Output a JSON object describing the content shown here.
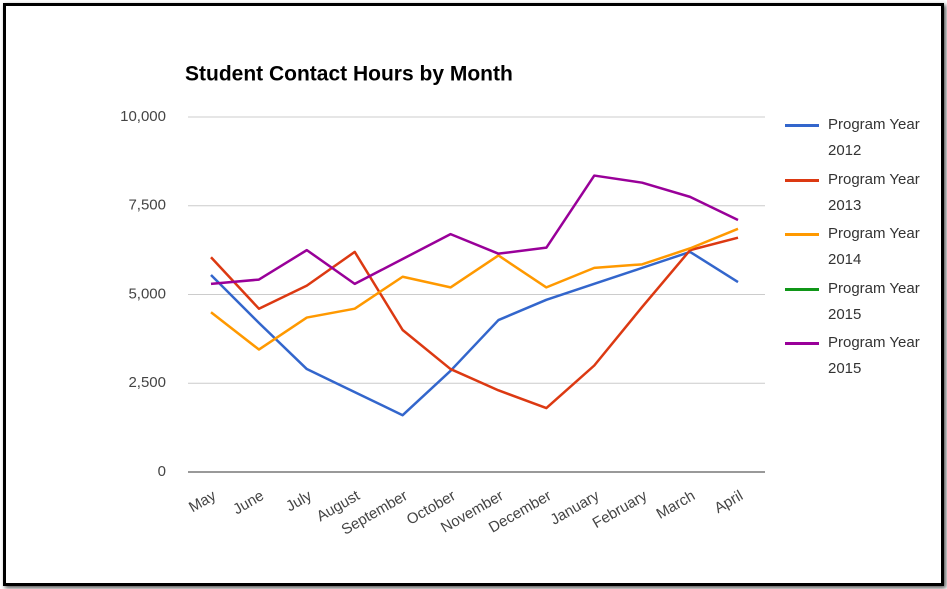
{
  "chart_data": {
    "type": "line",
    "title": "Student Contact Hours by Month",
    "categories": [
      "May",
      "June",
      "July",
      "August",
      "September",
      "October",
      "November",
      "December",
      "January",
      "February",
      "March",
      "April"
    ],
    "series": [
      {
        "name": "Program Year 2012",
        "color": "#3366cc",
        "values": [
          5550,
          4200,
          2900,
          2250,
          1600,
          2850,
          4280,
          4850,
          5300,
          5750,
          6200,
          5350
        ]
      },
      {
        "name": "Program Year 2013",
        "color": "#dc3912",
        "values": [
          6050,
          4600,
          5250,
          6200,
          4000,
          2900,
          2300,
          1800,
          3000,
          4650,
          6250,
          6600
        ]
      },
      {
        "name": "Program Year 2014",
        "color": "#ff9900",
        "values": [
          4500,
          3450,
          4350,
          4600,
          5500,
          5200,
          6100,
          5200,
          5750,
          5850,
          6300,
          6850
        ]
      },
      {
        "name": "Program Year 2015",
        "color": "#109618",
        "values": [
          null,
          null,
          null,
          null,
          null,
          null,
          null,
          null,
          null,
          null,
          null,
          null
        ]
      },
      {
        "name": "Program Year 2015",
        "color": "#990099",
        "values": [
          5300,
          5420,
          6250,
          5300,
          6000,
          6700,
          6150,
          6320,
          8350,
          8150,
          7750,
          7100
        ]
      }
    ],
    "ylim": [
      0,
      10000
    ],
    "yticks": [
      0,
      {
        "value": 2500,
        "label": "2,500"
      },
      {
        "value": 5000,
        "label": "5,000"
      },
      {
        "value": 7500,
        "label": "7,500"
      },
      {
        "value": 10000,
        "label": "10,000"
      }
    ],
    "grid": true,
    "legend": "right"
  }
}
